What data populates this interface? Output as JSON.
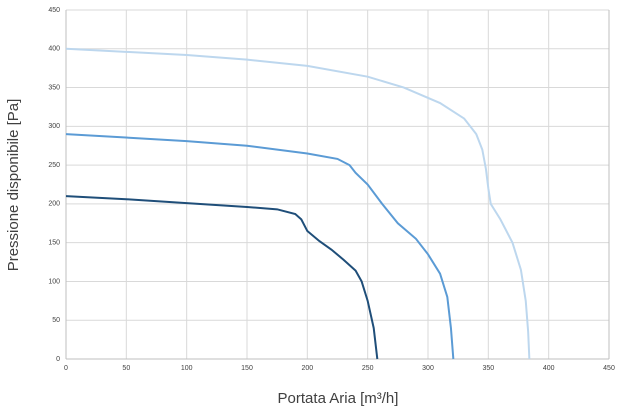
{
  "chart_data": {
    "type": "line",
    "x_label": "Portata Aria [m³/h]",
    "y_label": "Pressione disponibile [Pa]",
    "xlim": [
      0,
      450
    ],
    "xticks": [
      0,
      50,
      100,
      150,
      200,
      250,
      300,
      350,
      400,
      450
    ],
    "ylim": [
      0,
      450
    ],
    "yticks": [
      0,
      50,
      100,
      150,
      200,
      250,
      300,
      350,
      400,
      450
    ],
    "grid": true,
    "series": [
      {
        "color": "#1f4e79",
        "x": [
          0,
          50,
          100,
          150,
          175,
          190,
          195,
          200,
          210,
          220,
          230,
          240,
          245,
          250,
          255,
          258
        ],
        "values": [
          210,
          206,
          201,
          196,
          193,
          187,
          180,
          165,
          152,
          141,
          128,
          114,
          100,
          75,
          40,
          0
        ]
      },
      {
        "color": "#5b9bd5",
        "x": [
          0,
          100,
          150,
          200,
          225,
          235,
          240,
          250,
          262,
          275,
          290,
          300,
          310,
          316,
          319,
          321
        ],
        "values": [
          290,
          281,
          275,
          265,
          258,
          250,
          240,
          225,
          200,
          175,
          155,
          135,
          110,
          80,
          40,
          0
        ]
      },
      {
        "color": "#bdd7ee",
        "x": [
          0,
          100,
          150,
          200,
          250,
          280,
          310,
          330,
          340,
          345,
          348,
          350,
          352,
          360,
          370,
          377,
          381,
          383,
          384
        ],
        "values": [
          400,
          392,
          386,
          378,
          364,
          350,
          330,
          310,
          290,
          270,
          245,
          220,
          200,
          180,
          150,
          115,
          75,
          35,
          0
        ]
      }
    ]
  }
}
